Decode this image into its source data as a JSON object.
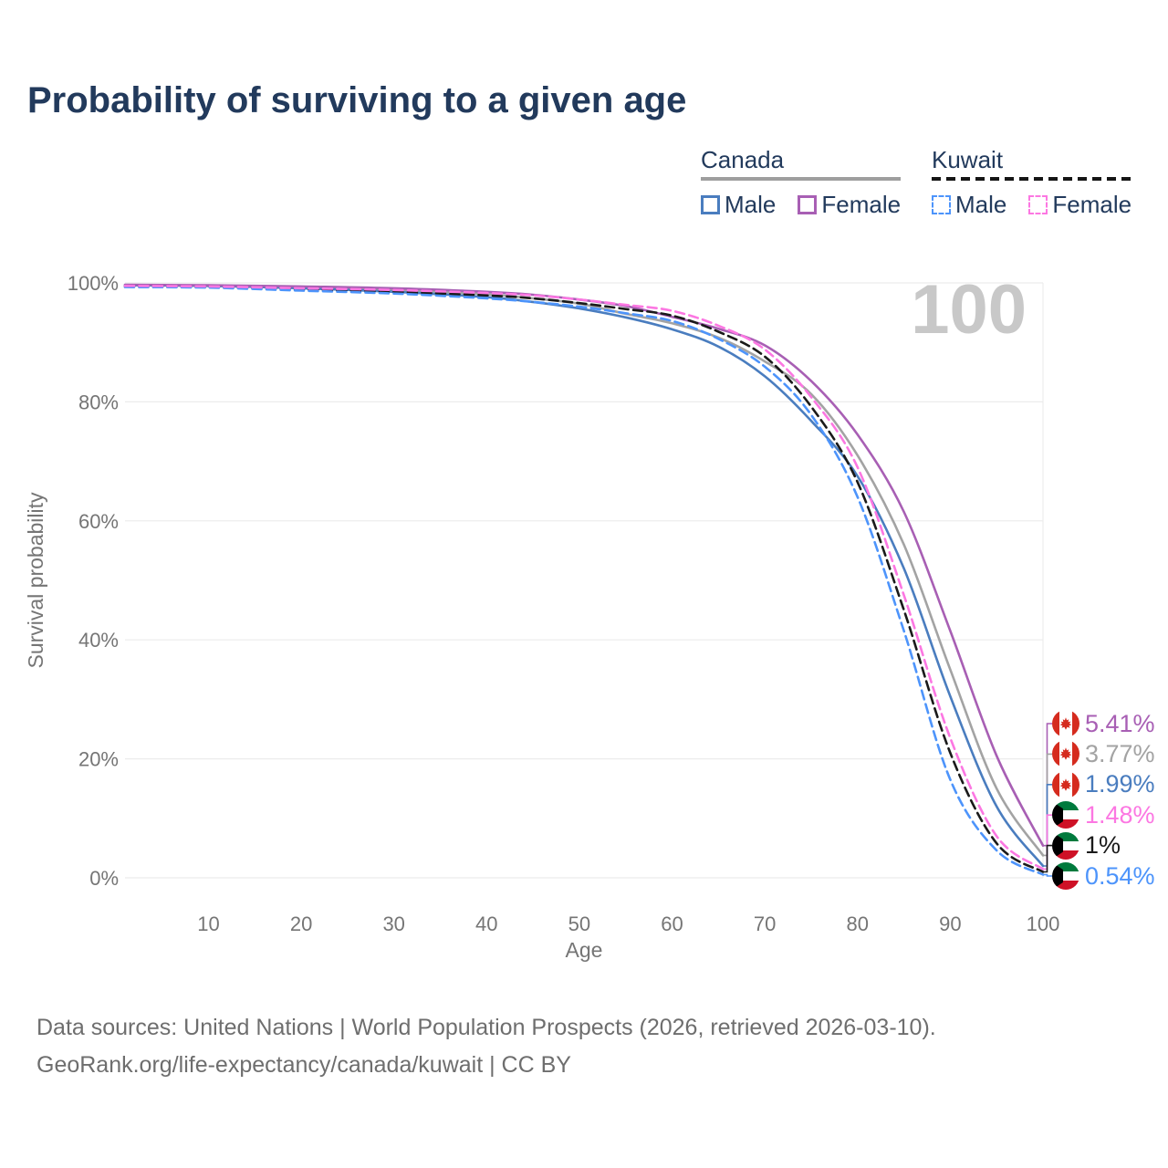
{
  "title": "Probability of surviving to a given age",
  "legend": {
    "groups": [
      {
        "label": "Canada",
        "underline": {
          "style": "solid",
          "color": "#9e9e9e"
        },
        "items": [
          {
            "label": "Male",
            "color": "#4a7dbf",
            "dashed": false
          },
          {
            "label": "Female",
            "color": "#a85fb4",
            "dashed": false
          }
        ]
      },
      {
        "label": "Kuwait",
        "underline": {
          "style": "dashed",
          "color": "#151515"
        },
        "items": [
          {
            "label": "Male",
            "color": "#4d94fb",
            "dashed": true
          },
          {
            "label": "Female",
            "color": "#fc77e2",
            "dashed": true
          }
        ]
      }
    ]
  },
  "chart_data": {
    "type": "line",
    "title": "Probability of surviving to a given age",
    "xlabel": "Age",
    "ylabel": "Survival probability",
    "watermark": "100",
    "grid": "horizontal",
    "xlim": [
      1,
      100
    ],
    "ylim": [
      0,
      100
    ],
    "x_ticks": [
      10,
      20,
      30,
      40,
      50,
      60,
      70,
      80,
      90,
      100
    ],
    "y_ticks": [
      0,
      20,
      40,
      60,
      80,
      100
    ],
    "y_tick_suffix": "%",
    "ages": [
      1,
      10,
      20,
      30,
      40,
      45,
      50,
      55,
      60,
      65,
      70,
      75,
      80,
      85,
      90,
      95,
      100
    ],
    "series": [
      {
        "id": "canada-total",
        "name": "Canada",
        "country": "canada",
        "color": "#a3a3a3",
        "dashed": false,
        "values": [
          99.65,
          99.5,
          99.3,
          98.8,
          98.1,
          97.4,
          96.5,
          94.8,
          93.2,
          90.8,
          86.8,
          81.3,
          71.0,
          56.0,
          35.0,
          15.0,
          3.77
        ],
        "end_label": "3.77%"
      },
      {
        "id": "canada-male",
        "name": "Canada Male",
        "country": "canada",
        "color": "#4a7dbf",
        "dashed": false,
        "values": [
          99.6,
          99.5,
          99.1,
          98.5,
          97.6,
          96.8,
          95.7,
          94.2,
          92.2,
          89.3,
          84.3,
          76.8,
          67.5,
          52.0,
          30.5,
          12.0,
          1.99
        ],
        "end_label": "1.99%"
      },
      {
        "id": "canada-female",
        "name": "Canada Female",
        "country": "canada",
        "color": "#a85fb4",
        "dashed": false,
        "values": [
          99.7,
          99.6,
          99.4,
          99.1,
          98.5,
          98.0,
          97.2,
          96.1,
          94.3,
          92.3,
          89.5,
          83.5,
          74.5,
          61.5,
          41.5,
          20.5,
          5.41
        ],
        "end_label": "5.41%"
      },
      {
        "id": "kuwait-total",
        "name": "Kuwait",
        "country": "kuwait",
        "color": "#1a1a1a",
        "dashed": true,
        "values": [
          99.4,
          99.3,
          98.9,
          98.5,
          97.9,
          97.4,
          96.6,
          95.6,
          94.5,
          91.8,
          87.6,
          79.2,
          66.5,
          45.0,
          21.0,
          5.8,
          1.0
        ],
        "end_label": "1%"
      },
      {
        "id": "kuwait-male",
        "name": "Kuwait Male",
        "country": "kuwait",
        "color": "#4d94fb",
        "dashed": true,
        "values": [
          99.3,
          99.2,
          98.7,
          98.2,
          97.4,
          96.8,
          96.0,
          94.9,
          93.6,
          90.6,
          85.9,
          77.8,
          64.0,
          41.5,
          16.5,
          4.6,
          0.54
        ],
        "end_label": "0.54%"
      },
      {
        "id": "kuwait-female",
        "name": "Kuwait Female",
        "country": "kuwait",
        "color": "#fc77e2",
        "dashed": true,
        "values": [
          99.5,
          99.4,
          99.1,
          98.8,
          98.3,
          97.9,
          97.2,
          96.3,
          95.3,
          92.8,
          88.8,
          80.8,
          69.0,
          47.5,
          23.5,
          7.0,
          1.48
        ],
        "end_label": "1.48%"
      }
    ]
  },
  "footer": {
    "line1": "Data sources: United Nations | World Population Prospects (2026, retrieved 2026-03-10).",
    "line2": "GeoRank.org/life-expectancy/canada/kuwait | CC BY"
  }
}
